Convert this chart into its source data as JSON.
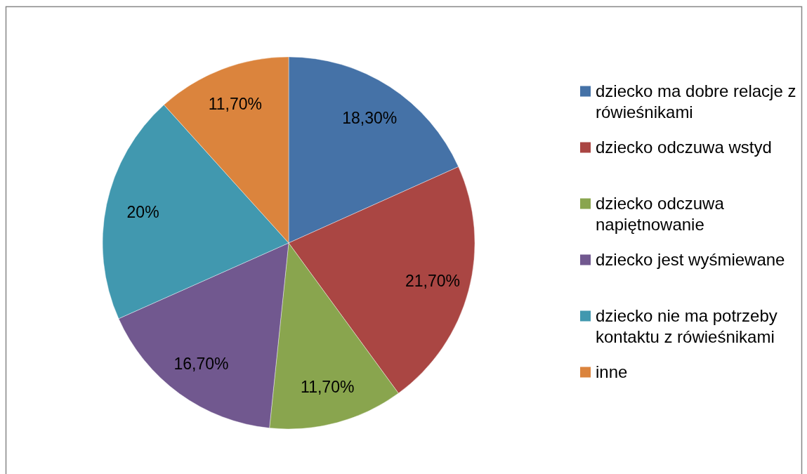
{
  "chart_data": {
    "type": "pie",
    "categories": [
      "dziecko ma dobre relacje z rówieśnikami",
      "dziecko odczuwa wstyd",
      "dziecko odczuwa napiętnowanie",
      "dziecko jest wyśmiewane",
      "dziecko nie ma potrzeby kontaktu z rówieśnikami",
      "inne"
    ],
    "values": [
      18.3,
      21.7,
      11.7,
      16.7,
      20,
      11.7
    ],
    "colors": [
      "#4572a7",
      "#aa4643",
      "#89a54e",
      "#71588f",
      "#4198af",
      "#db843d"
    ],
    "value_labels": [
      "18,30%",
      "21,70%",
      "11,70%",
      "16,70%",
      "20%",
      "11,70%"
    ],
    "legend": "right"
  }
}
